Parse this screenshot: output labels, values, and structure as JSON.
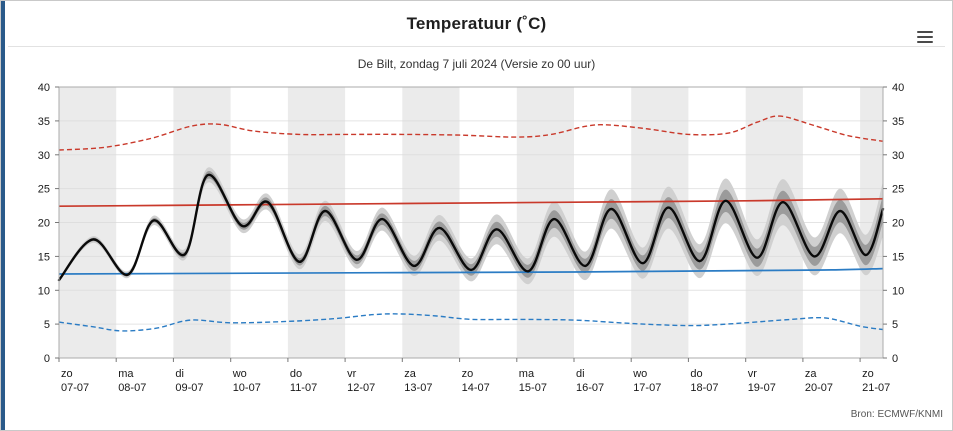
{
  "header": {
    "title": "Temperatuur (˚C)",
    "subtitle": "De Bilt, zondag 7 juli 2024 (Versie zo 00 uur)"
  },
  "footer": {
    "source": "Bron: ECMWF/KNMI"
  },
  "menu": {
    "icon": "hamburger-icon"
  },
  "colors": {
    "accent_bar": "#2a5a8a",
    "red_line": "#c9392b",
    "blue_line": "#2b7cc4",
    "mean_line": "#0a0a0a",
    "band_outer": "#d0d0d0",
    "band_inner": "#9b9b9b",
    "day_shading": "#ebebeb",
    "gridline": "#d9d9d9",
    "plot_border": "#ababab"
  },
  "chart_data": {
    "type": "line",
    "title": "Temperatuur (˚C)",
    "subtitle": "De Bilt, zondag 7 juli 2024 (Versie zo 00 uur)",
    "ylim": [
      0,
      40
    ],
    "xlim_days": [
      0,
      14.4
    ],
    "yticks": [
      0,
      5,
      10,
      15,
      20,
      25,
      30,
      35,
      40
    ],
    "grid": true,
    "legend": "none",
    "x_day_labels": [
      {
        "weekday": "zo",
        "date": "07-07"
      },
      {
        "weekday": "ma",
        "date": "08-07"
      },
      {
        "weekday": "di",
        "date": "09-07"
      },
      {
        "weekday": "wo",
        "date": "10-07"
      },
      {
        "weekday": "do",
        "date": "11-07"
      },
      {
        "weekday": "vr",
        "date": "12-07"
      },
      {
        "weekday": "za",
        "date": "13-07"
      },
      {
        "weekday": "zo",
        "date": "14-07"
      },
      {
        "weekday": "ma",
        "date": "15-07"
      },
      {
        "weekday": "di",
        "date": "16-07"
      },
      {
        "weekday": "wo",
        "date": "17-07"
      },
      {
        "weekday": "do",
        "date": "18-07"
      },
      {
        "weekday": "vr",
        "date": "19-07"
      },
      {
        "weekday": "za",
        "date": "20-07"
      },
      {
        "weekday": "zo",
        "date": "21-07"
      }
    ],
    "plume": {
      "name": "ensemble-mean-with-uncertainty",
      "color": "#0a0a0a",
      "outer_color": "#d0d0d0",
      "inner_color": "#9b9b9b",
      "inner_fraction": 0.5,
      "x": [
        0.0,
        0.6,
        1.2,
        1.65,
        2.2,
        2.6,
        3.2,
        3.65,
        4.2,
        4.65,
        5.2,
        5.65,
        6.2,
        6.65,
        7.2,
        7.65,
        8.2,
        8.65,
        9.2,
        9.65,
        10.2,
        10.65,
        11.2,
        11.65,
        12.2,
        12.65,
        13.2,
        13.65,
        14.1,
        14.4
      ],
      "mean": [
        11.5,
        17.5,
        12.3,
        20.3,
        15.3,
        27.0,
        19.5,
        23.0,
        14.2,
        21.7,
        14.5,
        20.5,
        13.6,
        19.2,
        13.0,
        19.0,
        12.8,
        20.5,
        13.6,
        22.0,
        14.0,
        22.2,
        14.3,
        23.2,
        14.8,
        23.0,
        15.0,
        21.7,
        15.2,
        22.0
      ],
      "spread": [
        0.3,
        0.5,
        0.5,
        0.7,
        0.8,
        1.1,
        1.0,
        1.2,
        1.1,
        1.5,
        1.3,
        1.7,
        1.5,
        1.9,
        1.7,
        2.2,
        1.9,
        2.6,
        2.1,
        2.9,
        2.3,
        3.1,
        2.5,
        3.3,
        2.7,
        3.4,
        2.8,
        3.3,
        3.0,
        4.0
      ]
    },
    "series": [
      {
        "name": "climate-max",
        "color": "#c9392b",
        "style": "solid",
        "x": [
          0,
          3,
          6,
          9,
          12,
          14.4
        ],
        "y": [
          22.4,
          22.6,
          22.8,
          23.0,
          23.2,
          23.5
        ]
      },
      {
        "name": "record-max",
        "color": "#c9392b",
        "style": "dashed",
        "x": [
          0.0,
          0.8,
          1.6,
          2.3,
          2.8,
          3.4,
          4.2,
          5.0,
          6.0,
          7.0,
          8.0,
          8.6,
          9.2,
          9.6,
          10.3,
          11.0,
          11.7,
          12.2,
          12.6,
          13.2,
          13.8,
          14.4
        ],
        "y": [
          30.7,
          31.1,
          32.4,
          34.2,
          34.5,
          33.5,
          33.0,
          33.0,
          33.0,
          32.9,
          32.6,
          33.0,
          34.2,
          34.4,
          33.8,
          33.0,
          33.2,
          34.8,
          35.7,
          34.3,
          32.8,
          32.0
        ]
      },
      {
        "name": "climate-min",
        "color": "#2b7cc4",
        "style": "solid",
        "x": [
          0,
          3,
          6,
          9,
          12,
          13.5,
          14.4
        ],
        "y": [
          12.4,
          12.5,
          12.6,
          12.7,
          12.9,
          13.0,
          13.2
        ]
      },
      {
        "name": "record-min",
        "color": "#2b7cc4",
        "style": "dashed",
        "x": [
          0.0,
          0.6,
          1.1,
          1.7,
          2.3,
          3.0,
          4.0,
          4.8,
          5.5,
          6.0,
          6.6,
          7.2,
          8.0,
          9.0,
          9.8,
          10.5,
          11.2,
          12.0,
          12.8,
          13.4,
          14.0,
          14.4
        ],
        "y": [
          5.3,
          4.6,
          4.0,
          4.4,
          5.6,
          5.2,
          5.4,
          5.8,
          6.4,
          6.5,
          6.2,
          5.7,
          5.7,
          5.6,
          5.2,
          4.9,
          4.8,
          5.2,
          5.7,
          5.9,
          4.7,
          4.2
        ]
      }
    ]
  }
}
